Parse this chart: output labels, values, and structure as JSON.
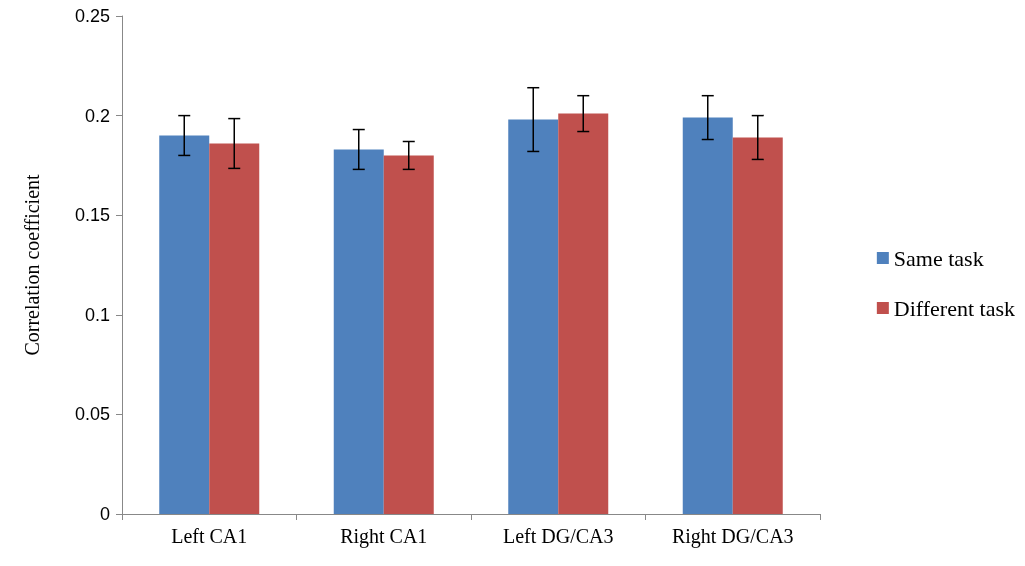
{
  "chart_data": {
    "type": "bar",
    "ylabel": "Correlation coefficient",
    "categories": [
      "Left CA1",
      "Right CA1",
      "Left DG/CA3",
      "Right DG/CA3"
    ],
    "series": [
      {
        "name": "Same task",
        "color": "#4f81bd",
        "values": [
          0.19,
          0.183,
          0.198,
          0.199
        ],
        "errors": [
          0.01,
          0.01,
          0.016,
          0.011
        ]
      },
      {
        "name": "Different task",
        "color": "#c0504d",
        "values": [
          0.186,
          0.18,
          0.201,
          0.189
        ],
        "errors": [
          0.0125,
          0.007,
          0.009,
          0.011
        ]
      }
    ],
    "ylim": [
      0,
      0.25
    ],
    "yticks": [
      0,
      0.05,
      0.1,
      0.15,
      0.2,
      0.25
    ],
    "grid": false,
    "legend": "right"
  }
}
